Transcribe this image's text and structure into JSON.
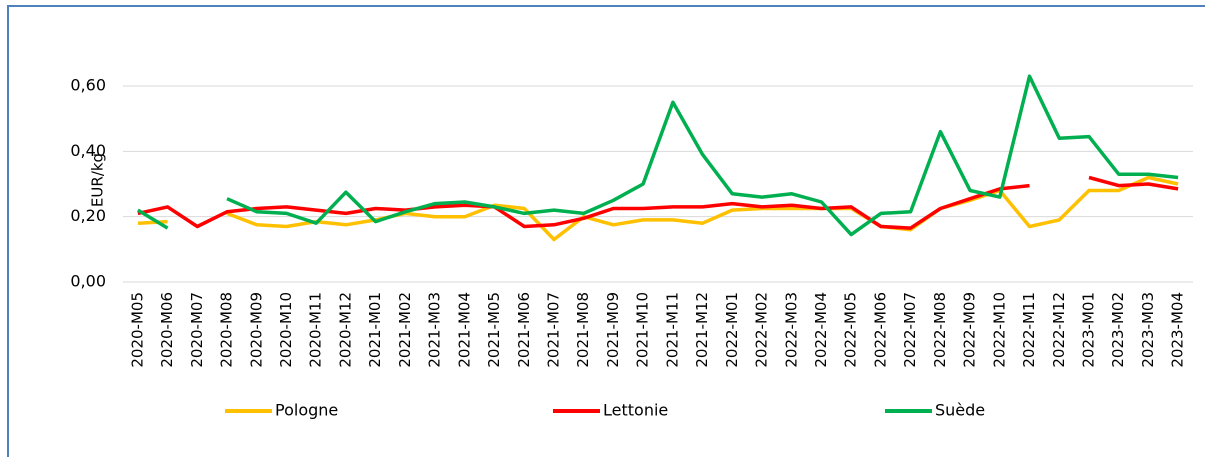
{
  "chart_data": {
    "type": "line",
    "y_label": "EUR/kg",
    "categories": [
      "2020-M05",
      "2020-M06",
      "2020-M07",
      "2020-M08",
      "2020-M09",
      "2020-M10",
      "2020-M11",
      "2020-M12",
      "2021-M01",
      "2021-M02",
      "2021-M03",
      "2021-M04",
      "2021-M05",
      "2021-M06",
      "2021-M07",
      "2021-M08",
      "2021-M09",
      "2021-M10",
      "2021-M11",
      "2021-M12",
      "2022-M01",
      "2022-M02",
      "2022-M03",
      "2022-M04",
      "2022-M05",
      "2022-M06",
      "2022-M07",
      "2022-M08",
      "2022-M09",
      "2022-M10",
      "2022-M11",
      "2022-M12",
      "2023-M01",
      "2023-M02",
      "2023-M03",
      "2023-M04"
    ],
    "series": [
      {
        "name": "Pologne",
        "color": "#ffc000",
        "values": [
          0.18,
          0.185,
          null,
          0.21,
          0.175,
          0.17,
          0.185,
          0.175,
          0.19,
          0.21,
          0.2,
          0.2,
          0.235,
          0.225,
          0.13,
          0.2,
          0.175,
          0.19,
          0.19,
          0.18,
          0.22,
          0.225,
          0.225,
          0.225,
          0.225,
          0.17,
          0.16,
          0.225,
          0.25,
          0.28,
          0.17,
          0.19,
          0.28,
          0.28,
          0.32,
          0.3
        ]
      },
      {
        "name": "Lettonie",
        "color": "#ff0000",
        "values": [
          0.21,
          0.23,
          0.17,
          0.215,
          0.225,
          0.23,
          0.22,
          0.21,
          0.225,
          0.22,
          0.23,
          0.235,
          0.23,
          0.17,
          0.175,
          0.195,
          0.225,
          0.225,
          0.23,
          0.23,
          0.24,
          0.23,
          0.235,
          0.225,
          0.23,
          0.17,
          0.165,
          0.225,
          0.255,
          0.285,
          0.295,
          null,
          0.32,
          0.295,
          0.3,
          0.285
        ]
      },
      {
        "name": "Suède",
        "color": "#00b050",
        "values": [
          0.22,
          0.165,
          null,
          0.255,
          0.215,
          0.21,
          0.18,
          0.275,
          0.185,
          0.215,
          0.24,
          0.245,
          0.23,
          0.21,
          0.22,
          0.21,
          0.25,
          0.3,
          0.55,
          0.39,
          0.27,
          0.26,
          0.27,
          0.245,
          0.145,
          0.21,
          0.215,
          0.46,
          0.28,
          0.26,
          0.63,
          0.44,
          0.445,
          0.33,
          0.33,
          0.32
        ]
      }
    ],
    "ylim": [
      0,
      0.7
    ],
    "yticks": [
      {
        "value": 0,
        "label": "0,00"
      },
      {
        "value": 0.2,
        "label": "0,20"
      },
      {
        "value": 0.4,
        "label": "0,40"
      },
      {
        "value": 0.6,
        "label": "0,60"
      }
    ],
    "grid": true
  }
}
